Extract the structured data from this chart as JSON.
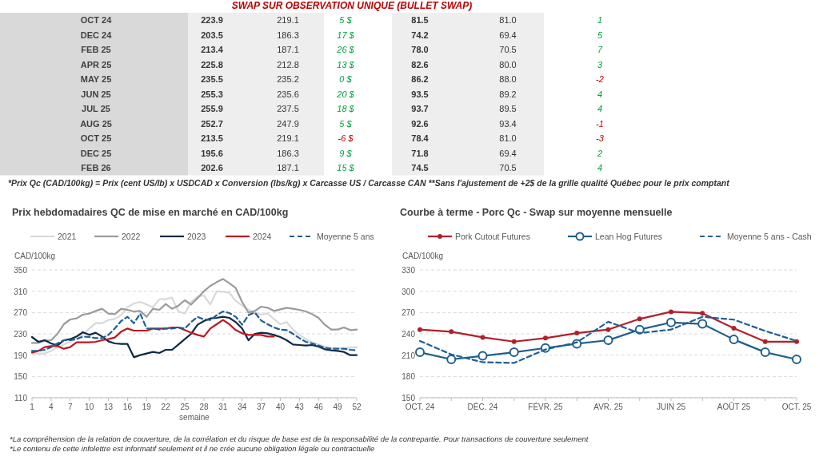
{
  "chart_data": [
    {
      "type": "other",
      "title": "SWAP SUR OBSERVATION UNIQUE (BULLET SWAP)",
      "y_categories": [
        "OCT 24",
        "DEC 24",
        "FEB 25",
        "APR 25",
        "MAY 25",
        "JUN 25",
        "JUL 25",
        "AUG 25",
        "OCT 25",
        "DEC 25",
        "FEB 26"
      ],
      "cell_labels": [
        [
          "223.9",
          "219.1",
          "5 $",
          "81.5",
          "81.0",
          "1"
        ],
        [
          "203.5",
          "186.3",
          "17 $",
          "74.2",
          "69.4",
          "5"
        ],
        [
          "213.4",
          "187.1",
          "26 $",
          "78.0",
          "70.5",
          "7"
        ],
        [
          "225.8",
          "212.8",
          "13 $",
          "82.6",
          "80.0",
          "3"
        ],
        [
          "235.5",
          "235.2",
          "0 $",
          "86.2",
          "88.0",
          "-2"
        ],
        [
          "255.3",
          "235.6",
          "20 $",
          "93.5",
          "89.2",
          "4"
        ],
        [
          "255.9",
          "237.5",
          "18 $",
          "93.7",
          "89.5",
          "4"
        ],
        [
          "252.7",
          "247.9",
          "5 $",
          "92.6",
          "93.4",
          "-1"
        ],
        [
          "213.5",
          "219.1",
          "-6 $",
          "78.4",
          "81.0",
          "-3"
        ],
        [
          "195.6",
          "186.3",
          "9 $",
          "71.8",
          "69.4",
          "2"
        ],
        [
          "202.6",
          "187.1",
          "15 $",
          "74.5",
          "70.5",
          "4"
        ]
      ],
      "annotations": [
        "*Prix Qc (CAD/100kg) = Prix (cent US/lb) x USDCAD x Conversion (lbs/kg) x Carcasse US / Carcasse CAN **Sans l'ajustement de +2$ de la grille qualité Québec pour le prix comptant"
      ]
    },
    {
      "type": "line",
      "title": "Prix hebdomadaires QC de mise en marché en CAD/100kg",
      "xlabel": "semaine",
      "ylabel": "CAD/100kg",
      "x": [
        1,
        2,
        3,
        4,
        5,
        6,
        7,
        8,
        9,
        10,
        11,
        12,
        13,
        14,
        15,
        16,
        17,
        18,
        19,
        20,
        21,
        22,
        23,
        24,
        25,
        26,
        27,
        28,
        29,
        30,
        31,
        32,
        33,
        34,
        35,
        36,
        37,
        38,
        39,
        40,
        41,
        42,
        43,
        44,
        45,
        46,
        47,
        48,
        49,
        50,
        51,
        52
      ],
      "xlim": [
        1,
        52
      ],
      "xticks": [
        1,
        4,
        7,
        10,
        13,
        16,
        19,
        22,
        25,
        28,
        31,
        34,
        37,
        40,
        43,
        46,
        49,
        52
      ],
      "ylim": [
        110,
        350
      ],
      "yticks": [
        110,
        150,
        190,
        230,
        270,
        310,
        350
      ],
      "grid": "y",
      "legend": "top",
      "marker": "none",
      "series": [
        {
          "name": "2021",
          "color": "#d9d9d9",
          "values": [
            193,
            193,
            193,
            198,
            205,
            210,
            215,
            222,
            228,
            240,
            250,
            250,
            256,
            258,
            265,
            280,
            287,
            290,
            285,
            280,
            295,
            295,
            298,
            272,
            268,
            290,
            300,
            302,
            285,
            310,
            309,
            307,
            292,
            283,
            275,
            270,
            266,
            268,
            258,
            248,
            252,
            238,
            228,
            220,
            214,
            210,
            206,
            204,
            203,
            203,
            204,
            205
          ]
        },
        {
          "name": "2022",
          "color": "#9b9b9b",
          "values": [
            213,
            213,
            217,
            218,
            230,
            248,
            257,
            259,
            266,
            268,
            273,
            277,
            268,
            267,
            277,
            275,
            272,
            273,
            262,
            277,
            275,
            286,
            277,
            283,
            293,
            285,
            297,
            310,
            320,
            327,
            333,
            325,
            316,
            290,
            270,
            273,
            281,
            279,
            273,
            276,
            279,
            277,
            275,
            272,
            267,
            260,
            247,
            238,
            238,
            242,
            237,
            238
          ]
        },
        {
          "name": "2023",
          "color": "#0d2a45",
          "values": [
            224,
            215,
            218,
            212,
            208,
            218,
            220,
            225,
            233,
            228,
            232,
            225,
            216,
            212,
            211,
            211,
            186,
            190,
            193,
            196,
            194,
            200,
            200,
            210,
            220,
            230,
            247,
            254,
            259,
            260,
            262,
            260,
            252,
            240,
            218,
            230,
            232,
            231,
            228,
            224,
            218,
            210,
            209,
            208,
            209,
            206,
            201,
            199,
            198,
            196,
            190,
            190
          ]
        },
        {
          "name": "2024",
          "color": "#c0161e",
          "values": [
            195,
            198,
            205,
            207,
            207,
            202,
            205,
            214,
            214,
            214,
            215,
            218,
            220,
            223,
            234,
            240,
            236,
            236,
            236,
            240,
            240,
            240,
            242,
            242,
            237,
            232,
            228,
            225,
            240,
            248,
            256,
            248,
            237,
            231,
            228,
            228,
            228,
            225,
            225,
            null,
            null,
            null,
            null,
            null,
            null,
            null,
            null,
            null,
            null,
            null,
            null,
            null
          ]
        },
        {
          "name": "Moyenne 5 ans",
          "color": "#1f5f96",
          "line_style": "dashed",
          "values": [
            198,
            198,
            200,
            205,
            212,
            218,
            218,
            220,
            225,
            224,
            222,
            222,
            228,
            240,
            254,
            262,
            250,
            268,
            240,
            240,
            238,
            240,
            240,
            242,
            240,
            252,
            262,
            257,
            256,
            265,
            272,
            269,
            262,
            247,
            265,
            270,
            255,
            248,
            242,
            238,
            237,
            230,
            222,
            215,
            212,
            208,
            204,
            202,
            202,
            202,
            200,
            199
          ]
        }
      ]
    },
    {
      "type": "line",
      "title": "Courbe à terme - Porc Qc - Swap sur moyenne mensuelle",
      "ylabel": "CAD/100kg",
      "categories": [
        "OCT. 24",
        null,
        "DÉC. 24",
        null,
        "FÉVR. 25",
        null,
        "AVR. 25",
        null,
        "JUIN 25",
        null,
        "AOÛT 25",
        null,
        "OCT. 25"
      ],
      "ylim": [
        150,
        330
      ],
      "yticks": [
        150,
        180,
        210,
        240,
        270,
        300,
        330
      ],
      "grid": "y",
      "legend": "top",
      "series": [
        {
          "name": "Pork Cutout Futures",
          "color": "#b0202a",
          "marker": "circle",
          "values": [
            246,
            243,
            235,
            229,
            234,
            241,
            246,
            261,
            271,
            269,
            248,
            229,
            229
          ]
        },
        {
          "name": "Lean Hog Futures",
          "color": "#1f5f8b",
          "marker": "open_circle",
          "values": [
            214,
            204,
            209,
            214,
            220,
            226,
            231,
            246,
            256,
            254,
            232,
            214,
            204
          ]
        },
        {
          "name": "Moyenne 5 ans - Cash",
          "color": "#1f5f96",
          "line_style": "dashed",
          "marker": "none",
          "values": [
            230,
            211,
            200,
            199,
            218,
            228,
            257,
            241,
            246,
            264,
            260,
            244,
            230
          ]
        }
      ]
    },
    {
      "type": "other",
      "annotations": [
        "*La compréhension de la relation de couverture, de la corrélation et du risque de base est de la responsabilité de la contrepartie. Pour transactions de couverture seulement",
        "*Le contenu de cette infolettre est informatif seulement et il ne crée aucune obligation légale ou contractuelle"
      ]
    }
  ]
}
